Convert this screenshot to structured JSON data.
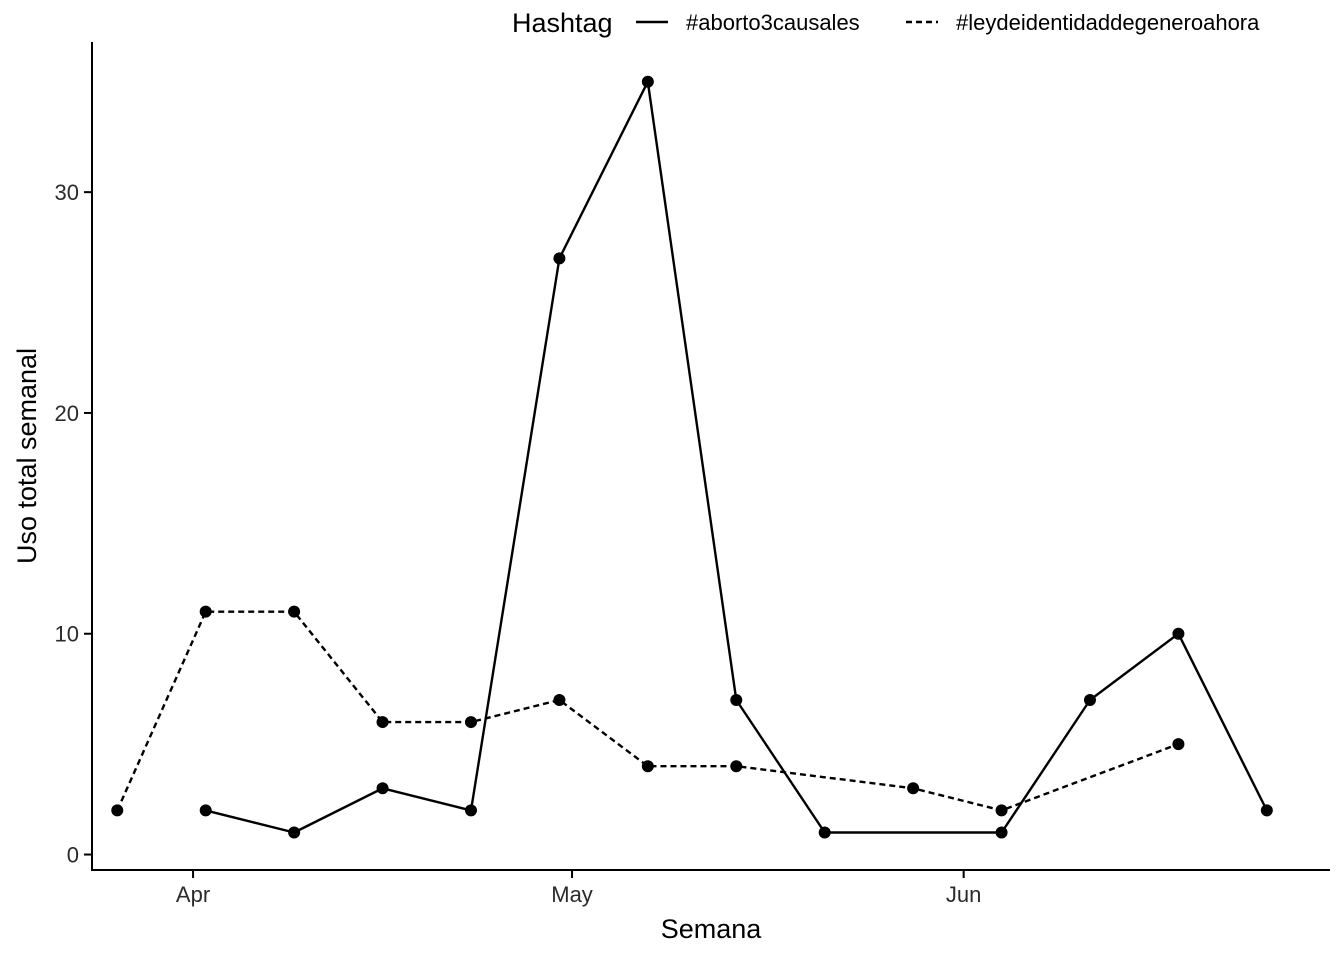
{
  "chart_data": {
    "type": "line",
    "xlabel": "Semana",
    "ylabel": "Uso total semanal",
    "x_ticks": [
      {
        "date": "2018-04-01",
        "label": "Apr"
      },
      {
        "date": "2018-05-01",
        "label": "May"
      },
      {
        "date": "2018-06-01",
        "label": "Jun"
      }
    ],
    "y_ticks": [
      0,
      10,
      20,
      30
    ],
    "xlim": [
      "2018-03-24",
      "2018-06-30"
    ],
    "ylim": [
      -0.7,
      36.8
    ],
    "grid": false,
    "legend": {
      "title": "Hashtag",
      "position": "top-right"
    },
    "series": [
      {
        "name": "#aborto3causales",
        "line_style": "solid",
        "color": "#000000",
        "points": [
          {
            "x": "2018-04-02",
            "y": 2
          },
          {
            "x": "2018-04-09",
            "y": 1
          },
          {
            "x": "2018-04-16",
            "y": 3
          },
          {
            "x": "2018-04-23",
            "y": 2
          },
          {
            "x": "2018-04-30",
            "y": 27
          },
          {
            "x": "2018-05-07",
            "y": 35
          },
          {
            "x": "2018-05-14",
            "y": 7
          },
          {
            "x": "2018-05-21",
            "y": 1
          },
          {
            "x": "2018-06-04",
            "y": 1
          },
          {
            "x": "2018-06-11",
            "y": 7
          },
          {
            "x": "2018-06-18",
            "y": 10
          },
          {
            "x": "2018-06-25",
            "y": 2
          }
        ]
      },
      {
        "name": "#leydeidentidaddegeneroahora",
        "line_style": "dashed",
        "color": "#000000",
        "points": [
          {
            "x": "2018-03-26",
            "y": 2
          },
          {
            "x": "2018-04-02",
            "y": 11
          },
          {
            "x": "2018-04-09",
            "y": 11
          },
          {
            "x": "2018-04-16",
            "y": 6
          },
          {
            "x": "2018-04-23",
            "y": 6
          },
          {
            "x": "2018-04-30",
            "y": 7
          },
          {
            "x": "2018-05-07",
            "y": 4
          },
          {
            "x": "2018-05-14",
            "y": 4
          },
          {
            "x": "2018-05-28",
            "y": 3
          },
          {
            "x": "2018-06-04",
            "y": 2
          },
          {
            "x": "2018-06-18",
            "y": 5
          }
        ]
      }
    ]
  }
}
